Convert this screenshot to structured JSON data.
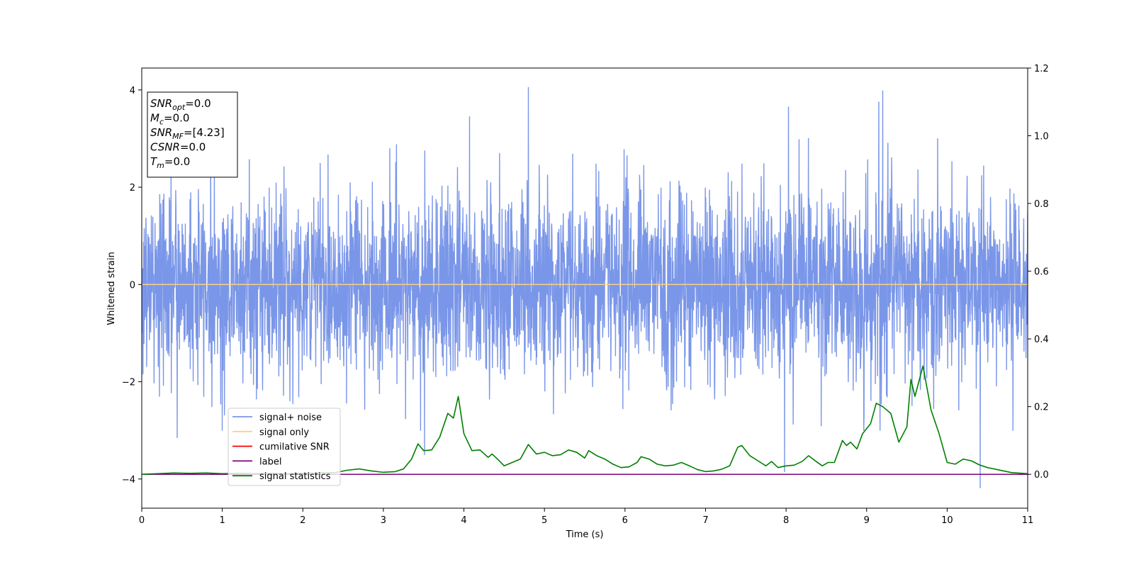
{
  "chart_data": {
    "type": "line",
    "xlabel": "Time (s)",
    "ylabel": "Whitened strain",
    "xlim": [
      0,
      11
    ],
    "ylim": [
      -4.6,
      4.45
    ],
    "y2lim": [
      -0.1,
      1.2
    ],
    "xticks": [
      "0",
      "1",
      "2",
      "3",
      "4",
      "5",
      "6",
      "7",
      "8",
      "9",
      "10",
      "11"
    ],
    "yticks": [
      "4",
      "2",
      "0",
      "−2",
      "−4"
    ],
    "y2ticks": [
      "1.2",
      "1.0",
      "0.8",
      "0.6",
      "0.4",
      "0.2",
      "0.0"
    ],
    "grid": false,
    "legend_position": "lower-left",
    "annotation": {
      "lines": [
        {
          "sym": "SNR",
          "sub": "opt",
          "rest": "=0.0"
        },
        {
          "sym": "M",
          "sub": "c",
          "rest": "=0.0"
        },
        {
          "sym": "SNR",
          "sub": "MF",
          "rest": "=[4.23]"
        },
        {
          "sym": "CSNR",
          "sub": "",
          "rest": "=0.0"
        },
        {
          "sym": "T",
          "sub": "m",
          "rest": "=0.0"
        }
      ]
    },
    "series": [
      {
        "name": "signal+ noise",
        "color": "#7a96e8",
        "axis": "left",
        "kind": "noise",
        "envelope_std": 0.95,
        "notable_peaks": [
          [
            4.8,
            4.05
          ],
          [
            9.2,
            3.98
          ],
          [
            8.03,
            3.65
          ],
          [
            9.15,
            3.75
          ],
          [
            4.07,
            3.45
          ],
          [
            10.41,
            -4.18
          ],
          [
            0.44,
            -3.15
          ],
          [
            1.0,
            -3.0
          ],
          [
            3.51,
            -3.5
          ],
          [
            7.98,
            -3.85
          ]
        ]
      },
      {
        "name": "signal only",
        "color": "#ffd180",
        "axis": "left",
        "x": [
          0,
          11
        ],
        "y": [
          0,
          0
        ]
      },
      {
        "name": "cumilative SNR",
        "color": "#ff0000",
        "axis": "left",
        "x": [],
        "y": []
      },
      {
        "name": "label",
        "color": "#800080",
        "axis": "right",
        "x": [
          0,
          11
        ],
        "y": [
          0,
          0
        ]
      },
      {
        "name": "signal statistics",
        "color": "#008000",
        "axis": "right",
        "x": [
          0,
          0.2,
          0.4,
          0.6,
          0.8,
          1.0,
          1.2,
          1.4,
          1.6,
          1.8,
          2.0,
          2.2,
          2.4,
          2.55,
          2.7,
          2.85,
          3.0,
          3.15,
          3.25,
          3.35,
          3.43,
          3.5,
          3.6,
          3.7,
          3.8,
          3.87,
          3.93,
          4.0,
          4.1,
          4.2,
          4.3,
          4.35,
          4.43,
          4.5,
          4.6,
          4.7,
          4.8,
          4.9,
          5.0,
          5.1,
          5.2,
          5.3,
          5.4,
          5.5,
          5.55,
          5.65,
          5.75,
          5.85,
          5.95,
          6.05,
          6.15,
          6.2,
          6.3,
          6.4,
          6.5,
          6.6,
          6.7,
          6.8,
          6.9,
          7.0,
          7.1,
          7.2,
          7.3,
          7.4,
          7.45,
          7.55,
          7.65,
          7.75,
          7.82,
          7.9,
          8.0,
          8.1,
          8.2,
          8.28,
          8.35,
          8.45,
          8.52,
          8.6,
          8.7,
          8.75,
          8.8,
          8.88,
          8.95,
          9.05,
          9.12,
          9.2,
          9.3,
          9.4,
          9.5,
          9.55,
          9.6,
          9.7,
          9.8,
          9.9,
          10.0,
          10.1,
          10.2,
          10.3,
          10.4,
          10.5,
          10.6,
          10.7,
          10.8,
          11.0
        ],
        "y": [
          0.0,
          0.002,
          0.004,
          0.003,
          0.004,
          0.002,
          0.003,
          0.002,
          0.003,
          0.002,
          0.003,
          0.004,
          0.005,
          0.012,
          0.016,
          0.01,
          0.006,
          0.008,
          0.016,
          0.045,
          0.09,
          0.07,
          0.072,
          0.11,
          0.18,
          0.166,
          0.23,
          0.12,
          0.07,
          0.072,
          0.05,
          0.06,
          0.042,
          0.025,
          0.035,
          0.045,
          0.088,
          0.06,
          0.065,
          0.055,
          0.058,
          0.072,
          0.065,
          0.048,
          0.07,
          0.055,
          0.045,
          0.03,
          0.02,
          0.022,
          0.035,
          0.052,
          0.045,
          0.03,
          0.025,
          0.027,
          0.035,
          0.025,
          0.014,
          0.008,
          0.01,
          0.015,
          0.025,
          0.08,
          0.085,
          0.055,
          0.04,
          0.025,
          0.038,
          0.02,
          0.025,
          0.027,
          0.038,
          0.055,
          0.042,
          0.025,
          0.035,
          0.035,
          0.1,
          0.085,
          0.095,
          0.075,
          0.12,
          0.15,
          0.21,
          0.2,
          0.18,
          0.095,
          0.14,
          0.28,
          0.23,
          0.32,
          0.19,
          0.12,
          0.035,
          0.03,
          0.045,
          0.04,
          0.028,
          0.02,
          0.015,
          0.01,
          0.005,
          0.002
        ]
      }
    ]
  }
}
